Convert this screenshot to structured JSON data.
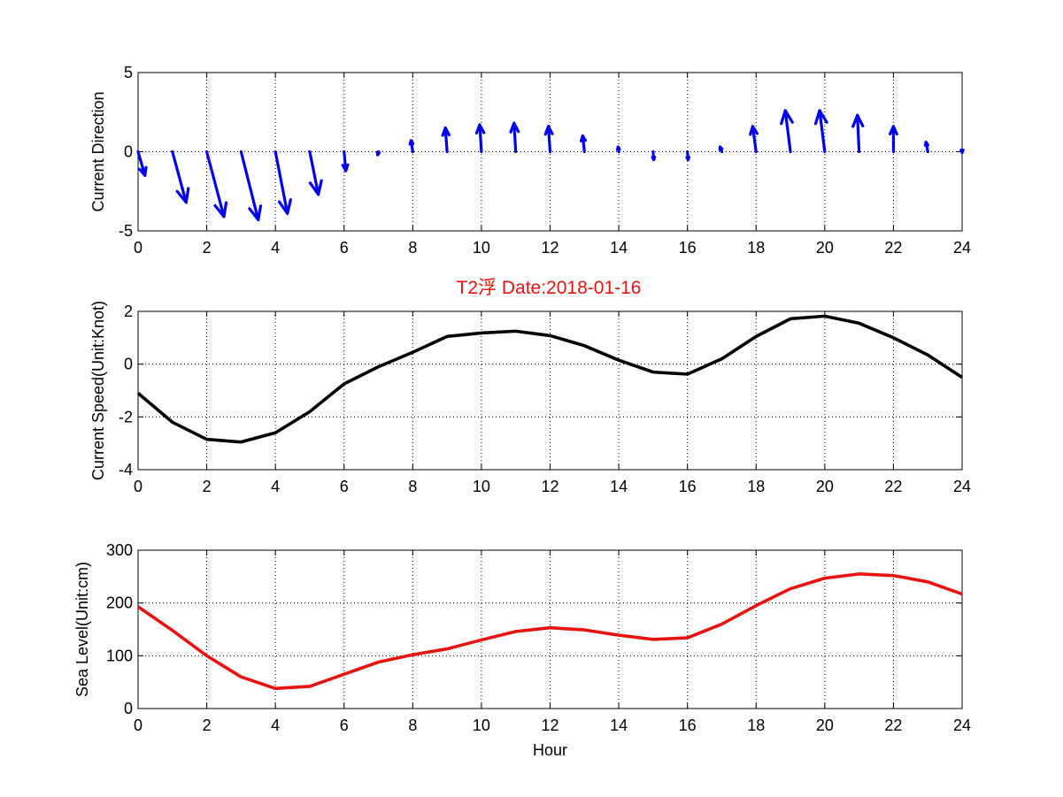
{
  "title": "T2浮    Date:2018-01-16",
  "title_color": "#e8120e",
  "chart_data": [
    {
      "type": "quiver",
      "ylabel": "Current Direction",
      "xlabel": "",
      "xlim": [
        0,
        24
      ],
      "ylim": [
        -5,
        5
      ],
      "x_ticks": [
        0,
        2,
        4,
        6,
        8,
        10,
        12,
        14,
        16,
        18,
        20,
        22,
        24
      ],
      "y_ticks": [
        -5,
        0,
        5
      ],
      "grid": true,
      "color": "#0000ee",
      "baseline_y": 0,
      "x": [
        0,
        1,
        2,
        3,
        4,
        5,
        6,
        7,
        8,
        9,
        10,
        11,
        12,
        13,
        14,
        15,
        16,
        17,
        18,
        19,
        20,
        21,
        22,
        23,
        24
      ],
      "u": [
        0.2,
        0.4,
        0.5,
        0.5,
        0.35,
        0.25,
        0.05,
        -0.02,
        -0.05,
        -0.05,
        -0.05,
        -0.05,
        -0.05,
        -0.05,
        -0.02,
        0.02,
        0.02,
        -0.05,
        -0.1,
        -0.15,
        -0.15,
        -0.05,
        0,
        -0.05,
        0
      ],
      "v": [
        -1.5,
        -3.2,
        -4.1,
        -4.3,
        -3.9,
        -2.7,
        -1.2,
        -0.2,
        0.7,
        1.5,
        1.7,
        1.8,
        1.6,
        1.0,
        0.3,
        -0.5,
        -0.5,
        0.3,
        1.6,
        2.6,
        2.6,
        2.3,
        1.6,
        0.6,
        -0.05
      ]
    },
    {
      "type": "line",
      "ylabel": "Current Speed(Unit:Knot)",
      "xlabel": "",
      "xlim": [
        0,
        24
      ],
      "ylim": [
        -4,
        2
      ],
      "x_ticks": [
        0,
        2,
        4,
        6,
        8,
        10,
        12,
        14,
        16,
        18,
        20,
        22,
        24
      ],
      "y_ticks": [
        -4,
        -2,
        0,
        2
      ],
      "grid": true,
      "color": "#000000",
      "x": [
        0,
        1,
        2,
        3,
        4,
        5,
        6,
        7,
        8,
        9,
        10,
        11,
        12,
        13,
        14,
        15,
        16,
        17,
        18,
        19,
        20,
        21,
        22,
        23,
        24
      ],
      "y": [
        -1.1,
        -2.2,
        -2.85,
        -2.95,
        -2.6,
        -1.8,
        -0.75,
        -0.1,
        0.45,
        1.05,
        1.18,
        1.25,
        1.08,
        0.7,
        0.15,
        -0.3,
        -0.38,
        0.2,
        1.05,
        1.72,
        1.82,
        1.55,
        1.0,
        0.35,
        -0.5
      ]
    },
    {
      "type": "line",
      "ylabel": "Sea Level(Unit:cm)",
      "xlabel": "Hour",
      "xlim": [
        0,
        24
      ],
      "ylim": [
        0,
        300
      ],
      "x_ticks": [
        0,
        2,
        4,
        6,
        8,
        10,
        12,
        14,
        16,
        18,
        20,
        22,
        24
      ],
      "y_ticks": [
        0,
        100,
        200,
        300
      ],
      "grid": true,
      "color": "#e8120e",
      "x": [
        0,
        1,
        2,
        3,
        4,
        5,
        6,
        7,
        8,
        9,
        10,
        11,
        12,
        13,
        14,
        15,
        16,
        17,
        18,
        19,
        20,
        21,
        22,
        23,
        24
      ],
      "y": [
        193,
        148,
        100,
        60,
        38,
        42,
        65,
        88,
        102,
        113,
        130,
        146,
        153,
        149,
        139,
        131,
        134,
        160,
        195,
        227,
        247,
        255,
        252,
        240,
        217
      ]
    }
  ]
}
